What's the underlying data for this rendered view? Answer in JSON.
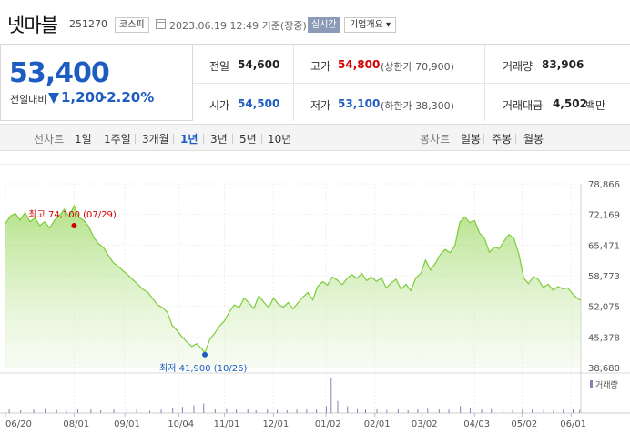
{
  "header": {
    "stock_name": "넷마블",
    "stock_code": "251270",
    "market": "코스피",
    "datetime": "2023.06.19 12:49 기준(장중)",
    "realtime_btn": "실시간",
    "company_btn": "기업개요 ▾"
  },
  "quote": {
    "price": "53,400",
    "change_label": "전일대비",
    "change_value": "1,200",
    "change_pct": "-2.20%",
    "prev_close_label": "전일",
    "prev_close": "54,600",
    "open_label": "시가",
    "open": "54,500",
    "high_label": "고가",
    "high": "54,800",
    "upper_limit": "(상한가 70,900)",
    "low_label": "저가",
    "low": "53,100",
    "lower_limit": "(하한가 38,300)",
    "volume_label": "거래량",
    "volume": "83,906",
    "amount_label": "거래대금",
    "amount": "4,502",
    "amount_unit": "백만"
  },
  "tabs": {
    "line_label": "선차트",
    "line_periods": [
      "1일",
      "1주일",
      "3개월",
      "1년",
      "3년",
      "5년",
      "10년"
    ],
    "selected": "1년",
    "candle_label": "봉차트",
    "candle_periods": [
      "일봉",
      "주봉",
      "월봉"
    ]
  },
  "colors": {
    "up": "#d40000",
    "down": "#1d5cc0",
    "line": "#7ccc3a"
  },
  "chart_data": {
    "type": "area",
    "y_ticks": [
      "78,866",
      "72,169",
      "65,471",
      "58,773",
      "52,075",
      "45,378",
      "38,680"
    ],
    "ylim": [
      38680,
      78866
    ],
    "x_ticks": [
      "06/20",
      "08/01",
      "09/01",
      "10/04",
      "11/01",
      "12/01",
      "01/02",
      "02/01",
      "03/02",
      "04/03",
      "05/02",
      "06/01"
    ],
    "x_tick_day_index": [
      0,
      42,
      73,
      106,
      134,
      164,
      196,
      226,
      255,
      287,
      316,
      346
    ],
    "series_price": [
      [
        0,
        70200
      ],
      [
        3,
        71800
      ],
      [
        6,
        72400
      ],
      [
        9,
        70900
      ],
      [
        12,
        72600
      ],
      [
        15,
        70600
      ],
      [
        18,
        71400
      ],
      [
        21,
        69700
      ],
      [
        24,
        70600
      ],
      [
        27,
        69200
      ],
      [
        30,
        70900
      ],
      [
        33,
        71900
      ],
      [
        36,
        73300
      ],
      [
        39,
        71700
      ],
      [
        42,
        74100
      ],
      [
        45,
        71500
      ],
      [
        48,
        70800
      ],
      [
        51,
        69500
      ],
      [
        54,
        67100
      ],
      [
        57,
        65800
      ],
      [
        60,
        64900
      ],
      [
        63,
        63200
      ],
      [
        66,
        61600
      ],
      [
        69,
        60800
      ],
      [
        72,
        59800
      ],
      [
        75,
        58900
      ],
      [
        78,
        57900
      ],
      [
        81,
        56900
      ],
      [
        84,
        55800
      ],
      [
        87,
        55200
      ],
      [
        90,
        53800
      ],
      [
        93,
        52400
      ],
      [
        96,
        51800
      ],
      [
        99,
        50800
      ],
      [
        102,
        47900
      ],
      [
        105,
        46800
      ],
      [
        108,
        45400
      ],
      [
        111,
        44300
      ],
      [
        114,
        43300
      ],
      [
        117,
        43900
      ],
      [
        120,
        42800
      ],
      [
        122,
        41900
      ],
      [
        125,
        44800
      ],
      [
        128,
        46200
      ],
      [
        131,
        47800
      ],
      [
        134,
        48900
      ],
      [
        137,
        50900
      ],
      [
        140,
        52400
      ],
      [
        143,
        51800
      ],
      [
        146,
        53900
      ],
      [
        149,
        52800
      ],
      [
        152,
        51600
      ],
      [
        155,
        54400
      ],
      [
        158,
        53000
      ],
      [
        161,
        51800
      ],
      [
        164,
        53900
      ],
      [
        167,
        52500
      ],
      [
        170,
        51900
      ],
      [
        173,
        52900
      ],
      [
        176,
        51500
      ],
      [
        179,
        52900
      ],
      [
        182,
        54100
      ],
      [
        185,
        55100
      ],
      [
        188,
        53500
      ],
      [
        191,
        56400
      ],
      [
        194,
        57500
      ],
      [
        197,
        56700
      ],
      [
        200,
        58500
      ],
      [
        203,
        57800
      ],
      [
        206,
        56800
      ],
      [
        209,
        58200
      ],
      [
        212,
        59000
      ],
      [
        215,
        58200
      ],
      [
        218,
        59300
      ],
      [
        221,
        57700
      ],
      [
        224,
        58500
      ],
      [
        227,
        57500
      ],
      [
        230,
        58300
      ],
      [
        233,
        56100
      ],
      [
        236,
        57200
      ],
      [
        239,
        58000
      ],
      [
        242,
        55800
      ],
      [
        245,
        56900
      ],
      [
        248,
        55500
      ],
      [
        251,
        58300
      ],
      [
        254,
        59200
      ],
      [
        257,
        62200
      ],
      [
        260,
        60000
      ],
      [
        263,
        61500
      ],
      [
        266,
        63400
      ],
      [
        269,
        64500
      ],
      [
        272,
        63800
      ],
      [
        275,
        65400
      ],
      [
        278,
        70500
      ],
      [
        281,
        71600
      ],
      [
        284,
        70400
      ],
      [
        287,
        70800
      ],
      [
        290,
        68100
      ],
      [
        293,
        66900
      ],
      [
        296,
        63900
      ],
      [
        299,
        65000
      ],
      [
        302,
        64700
      ],
      [
        305,
        66300
      ],
      [
        308,
        67800
      ],
      [
        311,
        66900
      ],
      [
        314,
        63600
      ],
      [
        317,
        58300
      ],
      [
        320,
        57000
      ],
      [
        323,
        58600
      ],
      [
        326,
        57900
      ],
      [
        329,
        56200
      ],
      [
        332,
        56900
      ],
      [
        335,
        55600
      ],
      [
        338,
        56400
      ],
      [
        341,
        55900
      ],
      [
        344,
        56100
      ],
      [
        347,
        54800
      ],
      [
        350,
        53800
      ],
      [
        352,
        53400
      ]
    ],
    "series_volume_day_index": [
      2,
      9,
      17,
      24,
      31,
      37,
      44,
      52,
      58,
      66,
      74,
      80,
      88,
      95,
      102,
      108,
      115,
      121,
      128,
      135,
      141,
      148,
      153,
      160,
      166,
      172,
      178,
      184,
      190,
      196,
      199,
      203,
      209,
      215,
      220,
      227,
      233,
      240,
      246,
      252,
      258,
      265,
      271,
      278,
      284,
      291,
      297,
      304,
      310,
      316,
      322,
      329,
      335,
      341,
      347,
      351
    ],
    "series_volume_rel": [
      0.12,
      0.08,
      0.1,
      0.14,
      0.09,
      0.07,
      0.12,
      0.1,
      0.08,
      0.11,
      0.09,
      0.13,
      0.07,
      0.1,
      0.16,
      0.18,
      0.22,
      0.28,
      0.12,
      0.14,
      0.1,
      0.12,
      0.08,
      0.11,
      0.09,
      0.08,
      0.1,
      0.12,
      0.1,
      0.2,
      1.0,
      0.35,
      0.2,
      0.14,
      0.1,
      0.12,
      0.09,
      0.11,
      0.08,
      0.13,
      0.15,
      0.12,
      0.1,
      0.2,
      0.16,
      0.12,
      0.14,
      0.1,
      0.09,
      0.11,
      0.13,
      0.1,
      0.08,
      0.12,
      0.1,
      0.09
    ],
    "annotations": {
      "high_label": "최고 74,100 (07/29)",
      "high_day": 42,
      "high_value": 74100,
      "low_label": "최저 41,900 (10/26)",
      "low_day": 122,
      "low_value": 41900
    },
    "volume_label": "거래량"
  }
}
